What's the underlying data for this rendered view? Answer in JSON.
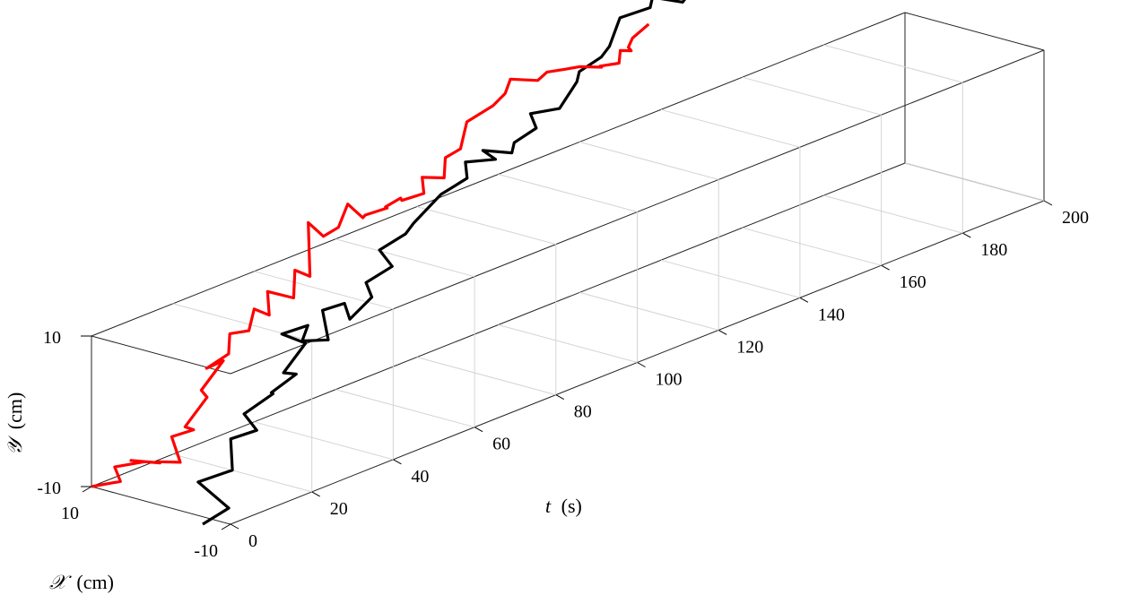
{
  "chart_data": {
    "type": "line3d",
    "grid": true,
    "axes": {
      "t": {
        "label_symbol": "t",
        "label_unit": "(s)",
        "range": [
          0,
          200
        ],
        "ticks": [
          {
            "value": 0,
            "label": "0"
          },
          {
            "value": 20,
            "label": "20"
          },
          {
            "value": 40,
            "label": "40"
          },
          {
            "value": 60,
            "label": "60"
          },
          {
            "value": 80,
            "label": "80"
          },
          {
            "value": 100,
            "label": "100"
          },
          {
            "value": 120,
            "label": "120"
          },
          {
            "value": 140,
            "label": "140"
          },
          {
            "value": 160,
            "label": "160"
          },
          {
            "value": 180,
            "label": "180"
          },
          {
            "value": 200,
            "label": "200"
          }
        ]
      },
      "x": {
        "label_symbol": "𝒳",
        "label_unit": "(cm)",
        "range": [
          -10,
          10
        ],
        "ticks": [
          {
            "value": 10,
            "label": "10"
          },
          {
            "value": -10,
            "label": "-10"
          }
        ]
      },
      "y": {
        "label_symbol": "𝒴",
        "label_unit": "(cm)",
        "range": [
          -10,
          10
        ],
        "ticks": [
          {
            "value": 10,
            "label": "10"
          },
          {
            "value": -10,
            "label": "-10"
          }
        ]
      }
    },
    "series": [
      {
        "color": "#000000",
        "points": [
          [
            0,
            -6,
            -11
          ],
          [
            3,
            -8,
            -9
          ],
          [
            4,
            -3,
            -7
          ],
          [
            9,
            -5,
            -6
          ],
          [
            12,
            -3,
            -3
          ],
          [
            15,
            -5,
            -2
          ],
          [
            17,
            -2,
            -1
          ],
          [
            19,
            -5,
            2
          ],
          [
            22,
            -3,
            1
          ],
          [
            23,
            -6,
            4
          ],
          [
            25,
            -3,
            3
          ],
          [
            27,
            -5,
            7
          ],
          [
            28,
            -1,
            7
          ],
          [
            31,
            -3,
            8
          ],
          [
            33,
            -1,
            5
          ],
          [
            36,
            -3,
            5
          ],
          [
            38,
            -1,
            8
          ],
          [
            40,
            -3,
            9
          ],
          [
            43,
            -2,
            6
          ],
          [
            45,
            -4,
            9
          ],
          [
            47,
            -2,
            10
          ],
          [
            50,
            -4,
            12
          ],
          [
            52,
            -1,
            13
          ],
          [
            55,
            -3,
            15
          ],
          [
            57,
            -3,
            16
          ],
          [
            62,
            -4,
            19
          ],
          [
            65,
            -6,
            21
          ],
          [
            68,
            -4,
            22
          ],
          [
            72,
            -6,
            22
          ],
          [
            74,
            -3,
            22
          ],
          [
            76,
            -6,
            22
          ],
          [
            80,
            -4,
            22
          ],
          [
            82,
            -6,
            24
          ],
          [
            84,
            -4,
            25
          ],
          [
            86,
            -7,
            26
          ],
          [
            92,
            -6,
            28
          ],
          [
            96,
            -4,
            28
          ],
          [
            98,
            -6,
            30
          ],
          [
            100,
            -6,
            31
          ],
          [
            106,
            -4,
            33
          ],
          [
            110,
            -6,
            34
          ],
          [
            114,
            -4,
            34
          ],
          [
            118,
            -6,
            33
          ],
          [
            120,
            -6,
            34
          ],
          [
            125,
            -5,
            34
          ],
          [
            127,
            -4,
            33
          ],
          [
            130,
            -6,
            33
          ],
          [
            132,
            -4,
            34
          ],
          [
            133,
            -6,
            35
          ],
          [
            136,
            -4,
            35
          ],
          [
            138,
            -6,
            35
          ],
          [
            140,
            -6,
            36
          ],
          [
            144,
            -5,
            36
          ]
        ]
      },
      {
        "color": "#ff0000",
        "points": [
          [
            0,
            10,
            -10
          ],
          [
            2,
            7,
            -9
          ],
          [
            4,
            9,
            -8
          ],
          [
            6,
            6,
            -7
          ],
          [
            8,
            9,
            -8
          ],
          [
            10,
            6,
            -8
          ],
          [
            13,
            8,
            -9
          ],
          [
            15,
            6,
            -9
          ],
          [
            18,
            9,
            -7
          ],
          [
            20,
            7,
            -6
          ],
          [
            23,
            10,
            -7
          ],
          [
            25,
            8,
            -3
          ],
          [
            27,
            10,
            -3
          ],
          [
            29,
            8,
            1
          ],
          [
            30,
            11,
            -1
          ],
          [
            32,
            9,
            1
          ],
          [
            34,
            10,
            3
          ],
          [
            37,
            9,
            3
          ],
          [
            40,
            10,
            5
          ],
          [
            42,
            9,
            4
          ],
          [
            45,
            11,
            6
          ],
          [
            48,
            9,
            5
          ],
          [
            50,
            10,
            8
          ],
          [
            52,
            9,
            7
          ],
          [
            55,
            11,
            13
          ],
          [
            57,
            10,
            11
          ],
          [
            59,
            9,
            12
          ],
          [
            63,
            10,
            14
          ],
          [
            65,
            9,
            12
          ],
          [
            69,
            11,
            11
          ],
          [
            71,
            9,
            12
          ],
          [
            74,
            11,
            11
          ],
          [
            76,
            10,
            12
          ],
          [
            78,
            11,
            11
          ],
          [
            80,
            9,
            12
          ],
          [
            83,
            11,
            13
          ],
          [
            85,
            9,
            13
          ],
          [
            87,
            10,
            15
          ],
          [
            89,
            9,
            16
          ],
          [
            94,
            11,
            18
          ],
          [
            97,
            9,
            20
          ],
          [
            100,
            9,
            21
          ],
          [
            103,
            10,
            22
          ],
          [
            108,
            9,
            21
          ],
          [
            112,
            10,
            21
          ],
          [
            115,
            9,
            21
          ],
          [
            120,
            10,
            20
          ],
          [
            122,
            8,
            20
          ],
          [
            125,
            10,
            19
          ],
          [
            128,
            9,
            19
          ],
          [
            130,
            10,
            20
          ],
          [
            131,
            9,
            20
          ],
          [
            132,
            10,
            20
          ],
          [
            133,
            10,
            21
          ],
          [
            137,
            10,
            22
          ]
        ]
      }
    ]
  }
}
